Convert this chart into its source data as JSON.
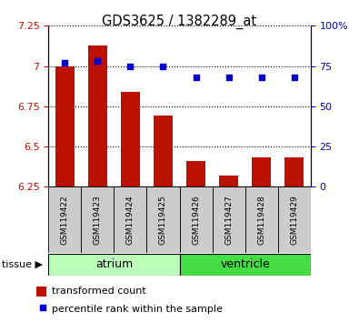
{
  "title": "GDS3625 / 1382289_at",
  "samples": [
    "GSM119422",
    "GSM119423",
    "GSM119424",
    "GSM119425",
    "GSM119426",
    "GSM119427",
    "GSM119428",
    "GSM119429"
  ],
  "transformed_count": [
    7.0,
    7.13,
    6.84,
    6.69,
    6.41,
    6.32,
    6.43,
    6.43
  ],
  "percentile_rank": [
    77,
    78,
    75,
    75,
    68,
    68,
    68,
    68
  ],
  "groups": [
    {
      "label": "atrium",
      "indices": [
        0,
        1,
        2,
        3
      ],
      "color": "#bbffbb"
    },
    {
      "label": "ventricle",
      "indices": [
        4,
        5,
        6,
        7
      ],
      "color": "#44dd44"
    }
  ],
  "ylim_left": [
    6.25,
    7.25
  ],
  "ylim_right": [
    0,
    100
  ],
  "yticks_left": [
    6.25,
    6.5,
    6.75,
    7.0,
    7.25
  ],
  "yticks_right": [
    0,
    25,
    50,
    75,
    100
  ],
  "ytick_labels_left": [
    "6.25",
    "6.5",
    "6.75",
    "7",
    "7.25"
  ],
  "ytick_labels_right": [
    "0",
    "25",
    "50",
    "75",
    "100%"
  ],
  "bar_color": "#bb1100",
  "scatter_color": "#0000cc",
  "bar_width": 0.6,
  "background_color": "#ffffff",
  "legend_items": [
    "transformed count",
    "percentile rank within the sample"
  ],
  "sample_box_color": "#cccccc",
  "tissue_label": "tissue"
}
